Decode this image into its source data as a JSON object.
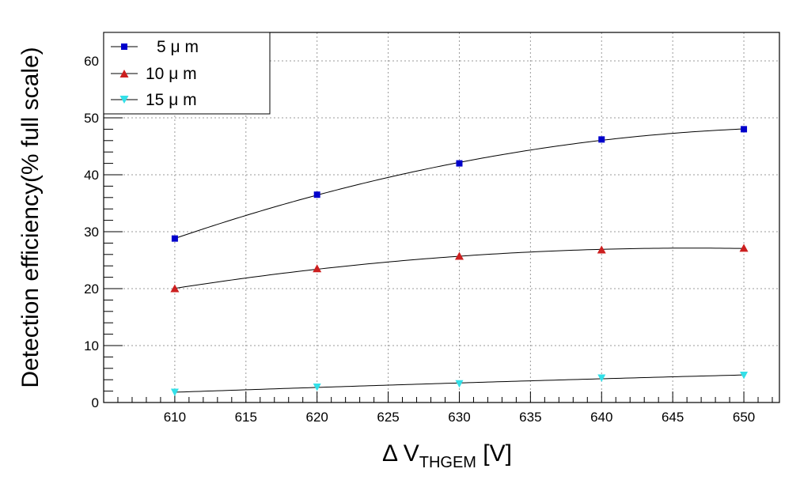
{
  "chart_data": {
    "type": "scatter",
    "title": "",
    "xlabel": {
      "main": "Δ V",
      "sub": "THGEM",
      "unit": " [V]"
    },
    "ylabel": "Detection efficiency(% full scale)",
    "xlim": [
      605,
      652.5
    ],
    "ylim": [
      0,
      65
    ],
    "x_ticks": [
      610,
      615,
      620,
      625,
      630,
      635,
      640,
      645,
      650
    ],
    "y_ticks": [
      0,
      10,
      20,
      30,
      40,
      50,
      60
    ],
    "grid": true,
    "legend_position": "top-left",
    "series": [
      {
        "name": "5 μ m",
        "marker": "square",
        "color": "#0000cc",
        "x": [
          610,
          620,
          630,
          640,
          650
        ],
        "y": [
          28.8,
          36.5,
          42.0,
          46.2,
          48.0
        ]
      },
      {
        "name": "10 μ m",
        "marker": "triangle-up",
        "color": "#cc1f1f",
        "x": [
          610,
          620,
          630,
          640,
          650
        ],
        "y": [
          20.0,
          23.5,
          25.7,
          26.8,
          27.1
        ]
      },
      {
        "name": "15 μ m",
        "marker": "triangle-down",
        "color": "#33e0e8",
        "x": [
          610,
          620,
          630,
          640,
          650
        ],
        "y": [
          1.8,
          2.7,
          3.3,
          4.3,
          4.8
        ]
      }
    ]
  }
}
